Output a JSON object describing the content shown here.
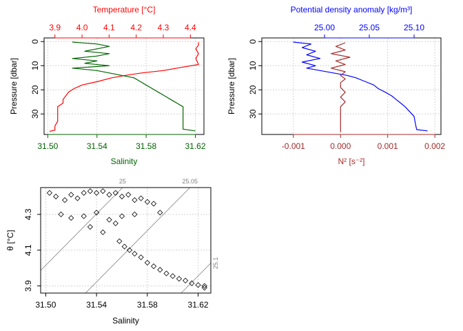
{
  "colors": {
    "temperature": "#ff0000",
    "salinity": "#006400",
    "density": "#0000ff",
    "n2": "#a52a2a",
    "axis": "#000000",
    "grid": "#d3d3d3",
    "isopycnal": "#808080"
  },
  "chart_data": [
    {
      "id": "ts_profile",
      "type": "line",
      "grid": true,
      "ylabel": "Pressure [dbar]",
      "ylim": [
        38.5,
        -1.5
      ],
      "yticks": [
        0,
        10,
        20,
        30
      ],
      "bottom_axis": {
        "label": "Salinity",
        "lim": [
          31.497,
          31.627
        ],
        "ticks": [
          31.5,
          31.54,
          31.58,
          31.62
        ],
        "tick_labels": [
          "31.50",
          "31.54",
          "31.58",
          "31.62"
        ],
        "color": "#006400"
      },
      "top_axis": {
        "label": "Temperature [°C]",
        "lim": [
          3.86,
          4.45
        ],
        "ticks": [
          3.9,
          4.0,
          4.1,
          4.2,
          4.3,
          4.4
        ],
        "tick_labels": [
          "3.9",
          "4.0",
          "4.1",
          "4.2",
          "4.3",
          "4.4"
        ],
        "color": "#ff0000"
      },
      "series": [
        {
          "axis": "top",
          "color": "#ff0000",
          "points": [
            [
              4.43,
              0.3
            ],
            [
              4.43,
              1.5
            ],
            [
              4.42,
              3
            ],
            [
              4.43,
              5
            ],
            [
              4.42,
              7
            ],
            [
              4.43,
              9.5
            ],
            [
              4.35,
              11
            ],
            [
              4.3,
              12
            ],
            [
              4.22,
              13
            ],
            [
              4.16,
              14
            ],
            [
              4.11,
              15
            ],
            [
              4.06,
              16.5
            ],
            [
              4.0,
              18
            ],
            [
              3.97,
              19.5
            ],
            [
              3.95,
              21
            ],
            [
              3.94,
              22.5
            ],
            [
              3.93,
              24
            ],
            [
              3.93,
              25.5
            ],
            [
              3.91,
              27
            ],
            [
              3.91,
              29
            ],
            [
              3.91,
              31
            ],
            [
              3.91,
              33
            ],
            [
              3.9,
              35
            ],
            [
              3.9,
              36.7
            ],
            [
              3.88,
              37.2
            ]
          ]
        },
        {
          "axis": "bottom",
          "color": "#006400",
          "points": [
            [
              31.52,
              0.2
            ],
            [
              31.54,
              1
            ],
            [
              31.55,
              2
            ],
            [
              31.54,
              3
            ],
            [
              31.53,
              4
            ],
            [
              31.55,
              5
            ],
            [
              31.54,
              6
            ],
            [
              31.52,
              7
            ],
            [
              31.54,
              8
            ],
            [
              31.53,
              9
            ],
            [
              31.55,
              10
            ],
            [
              31.52,
              11
            ],
            [
              31.54,
              12
            ],
            [
              31.55,
              13
            ],
            [
              31.56,
              14
            ],
            [
              31.57,
              15
            ],
            [
              31.575,
              16.5
            ],
            [
              31.58,
              18
            ],
            [
              31.585,
              19.5
            ],
            [
              31.59,
              21
            ],
            [
              31.595,
              22.5
            ],
            [
              31.6,
              24
            ],
            [
              31.605,
              25.5
            ],
            [
              31.61,
              27
            ],
            [
              31.61,
              29
            ],
            [
              31.61,
              31
            ],
            [
              31.61,
              33
            ],
            [
              31.61,
              35
            ],
            [
              31.61,
              36.3
            ],
            [
              31.62,
              37
            ]
          ]
        }
      ]
    },
    {
      "id": "density_profile",
      "type": "line",
      "grid": true,
      "ylabel": "Pressure [dbar]",
      "ylim": [
        38.5,
        -1.5
      ],
      "yticks": [
        0,
        10,
        20,
        30
      ],
      "bottom_axis": {
        "label": "N² [s⁻²]",
        "lim": [
          -0.00167,
          0.00213
        ],
        "ticks": [
          -0.001,
          0.0,
          0.001,
          0.002
        ],
        "tick_labels": [
          "-0.001",
          "0.000",
          "0.001",
          "0.002"
        ],
        "color": "#a52a2a"
      },
      "top_axis": {
        "label": "Potential density anomaly [kg/m³]",
        "lim": [
          24.93,
          25.13
        ],
        "ticks": [
          25.0,
          25.05,
          25.1
        ],
        "tick_labels": [
          "25.00",
          "25.05",
          "25.10"
        ],
        "color": "#0000ff"
      },
      "series": [
        {
          "axis": "top",
          "color": "#0000ff",
          "points": [
            [
              24.965,
              0.2
            ],
            [
              24.985,
              1
            ],
            [
              24.975,
              2.5
            ],
            [
              24.99,
              4
            ],
            [
              24.98,
              5.5
            ],
            [
              24.995,
              7
            ],
            [
              24.975,
              8.5
            ],
            [
              24.99,
              10
            ],
            [
              24.98,
              11
            ],
            [
              24.995,
              12
            ],
            [
              25.01,
              13
            ],
            [
              25.025,
              14
            ],
            [
              25.035,
              15
            ],
            [
              25.045,
              16.5
            ],
            [
              25.055,
              18
            ],
            [
              25.06,
              19.5
            ],
            [
              25.068,
              21
            ],
            [
              25.075,
              22.5
            ],
            [
              25.08,
              24
            ],
            [
              25.085,
              25.5
            ],
            [
              25.09,
              27
            ],
            [
              25.095,
              29
            ],
            [
              25.1,
              31
            ],
            [
              25.101,
              33
            ],
            [
              25.102,
              35
            ],
            [
              25.103,
              36.5
            ],
            [
              25.115,
              37
            ]
          ]
        },
        {
          "axis": "bottom",
          "color": "#a52a2a",
          "points": [
            [
              0.0001,
              0.5
            ],
            [
              -0.0001,
              2
            ],
            [
              0.0001,
              3.5
            ],
            [
              -0.0002,
              5
            ],
            [
              0.0002,
              6.5
            ],
            [
              -0.0001,
              8
            ],
            [
              0.0001,
              9.5
            ],
            [
              -0.0002,
              11
            ],
            [
              0.0001,
              12.5
            ],
            [
              0.0,
              14
            ],
            [
              0.0001,
              15.5
            ],
            [
              0.0,
              17
            ],
            [
              0.0,
              19
            ],
            [
              0.0001,
              21
            ],
            [
              0.0,
              23
            ],
            [
              0.0001,
              25
            ],
            [
              0.0,
              27
            ],
            [
              0.0,
              29
            ],
            [
              0.0,
              31
            ],
            [
              0.0,
              33
            ],
            [
              0.0,
              35
            ],
            [
              0.0,
              36
            ],
            [
              0.0,
              37.5
            ]
          ]
        }
      ]
    },
    {
      "id": "ts_diagram",
      "type": "scatter",
      "grid": true,
      "xlabel": "Salinity",
      "ylabel": "θ [°C]",
      "xlim": [
        31.496,
        31.63
      ],
      "ylim": [
        3.86,
        4.45
      ],
      "xticks": [
        31.5,
        31.54,
        31.58,
        31.62
      ],
      "xtick_labels": [
        "31.50",
        "31.54",
        "31.58",
        "31.62"
      ],
      "yticks": [
        3.9,
        4.1,
        4.3
      ],
      "ytick_labels": [
        "3.9",
        "4.1",
        "4.3"
      ],
      "isopycnals": [
        {
          "label": "25",
          "s0": 31.4961,
          "t0": 3.9872,
          "s1": 31.5605,
          "t1": 4.45
        },
        {
          "label": "25.05",
          "s0": 31.5313,
          "t0": 3.86,
          "s1": 31.6136,
          "t1": 4.45
        },
        {
          "label": "25.1",
          "s0": 31.6066,
          "t0": 3.86,
          "s1": 31.63,
          "t1": 4.0278
        }
      ],
      "points": [
        [
          31.503,
          4.42
        ],
        [
          31.508,
          4.4
        ],
        [
          31.515,
          4.38
        ],
        [
          31.52,
          4.41
        ],
        [
          31.525,
          4.39
        ],
        [
          31.53,
          4.42
        ],
        [
          31.535,
          4.43
        ],
        [
          31.54,
          4.42
        ],
        [
          31.545,
          4.43
        ],
        [
          31.55,
          4.41
        ],
        [
          31.555,
          4.42
        ],
        [
          31.56,
          4.4
        ],
        [
          31.565,
          4.41
        ],
        [
          31.57,
          4.38
        ],
        [
          31.575,
          4.39
        ],
        [
          31.58,
          4.37
        ],
        [
          31.585,
          4.36
        ],
        [
          31.59,
          4.31
        ],
        [
          31.512,
          4.3
        ],
        [
          31.52,
          4.28
        ],
        [
          31.53,
          4.29
        ],
        [
          31.54,
          4.31
        ],
        [
          31.55,
          4.27
        ],
        [
          31.56,
          4.29
        ],
        [
          31.57,
          4.3
        ],
        [
          31.535,
          4.23
        ],
        [
          31.545,
          4.2
        ],
        [
          31.555,
          4.25
        ],
        [
          31.558,
          4.15
        ],
        [
          31.562,
          4.12
        ],
        [
          31.566,
          4.1
        ],
        [
          31.57,
          4.08
        ],
        [
          31.575,
          4.06
        ],
        [
          31.58,
          4.03
        ],
        [
          31.585,
          4.01
        ],
        [
          31.59,
          3.99
        ],
        [
          31.595,
          3.97
        ],
        [
          31.6,
          3.955
        ],
        [
          31.605,
          3.94
        ],
        [
          31.61,
          3.93
        ],
        [
          31.615,
          3.915
        ],
        [
          31.62,
          3.905
        ],
        [
          31.625,
          3.9
        ],
        [
          31.625,
          3.89
        ]
      ]
    }
  ]
}
